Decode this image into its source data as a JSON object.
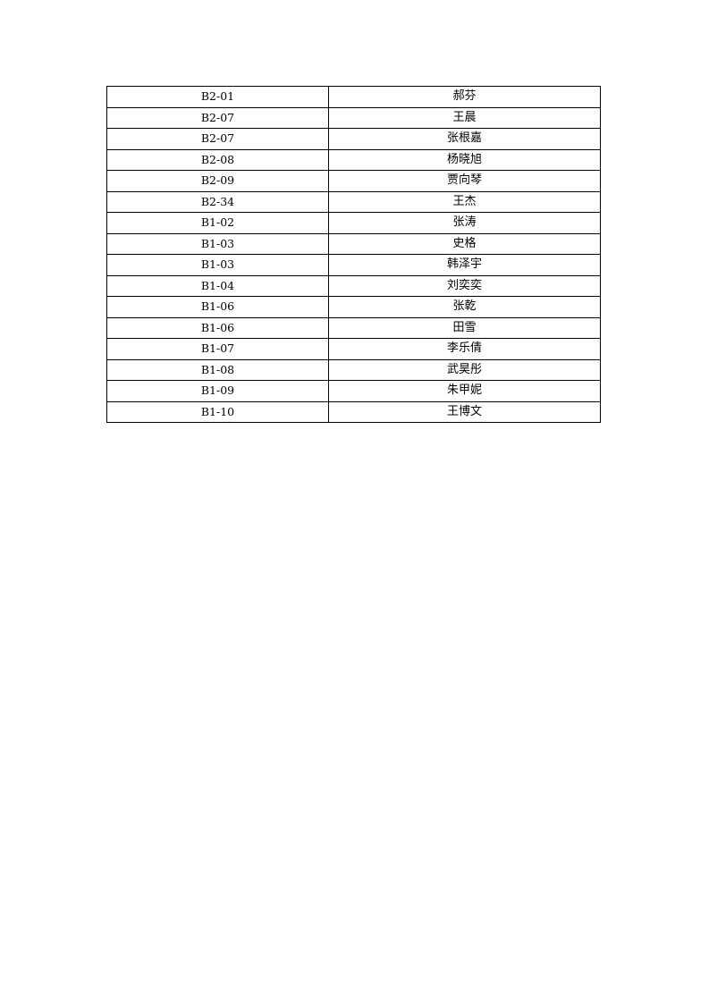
{
  "table": {
    "rows": [
      [
        "B2-01",
        "郝芬"
      ],
      [
        "B2-07",
        "王晨"
      ],
      [
        "B2-07",
        "张根嘉"
      ],
      [
        "B2-08",
        "杨晓旭"
      ],
      [
        "B2-09",
        "贾向琴"
      ],
      [
        "B2-34",
        "王杰"
      ],
      [
        "B1-02",
        "张涛"
      ],
      [
        "B1-03",
        "史格"
      ],
      [
        "B1-03",
        "韩泽宇"
      ],
      [
        "B1-04",
        "刘奕奕"
      ],
      [
        "B1-06",
        "张乾"
      ],
      [
        "B1-06",
        "田雪"
      ],
      [
        "B1-07",
        "李乐倩"
      ],
      [
        "B1-08",
        "武昊彤"
      ],
      [
        "B1-09",
        "朱甲妮"
      ],
      [
        "B1-10",
        "王博文"
      ]
    ]
  }
}
